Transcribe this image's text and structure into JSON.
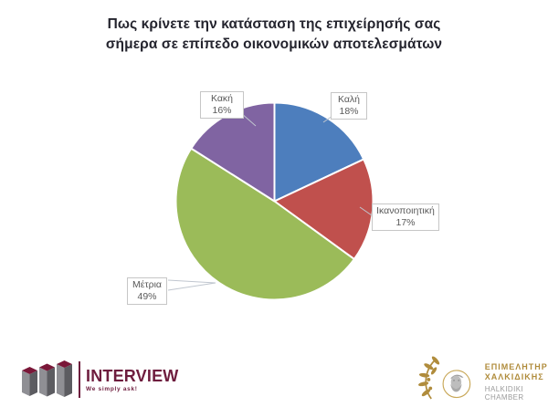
{
  "title": {
    "line1": "Πως κρίνετε την κατάσταση της επιχείρησής σας",
    "line2": "σήμερα σε επίπεδο οικονομικών αποτελεσμάτων"
  },
  "chart_data": {
    "type": "pie",
    "title": "Πως κρίνετε την κατάσταση της επιχείρησής σας σήμερα σε επίπεδο οικονομικών αποτελεσμάτων",
    "slices": [
      {
        "label": "Καλή",
        "value": 18,
        "pct_label": "18%",
        "color": "#4D7EBD"
      },
      {
        "label": "Ικανοποιητική",
        "value": 17,
        "pct_label": "17%",
        "color": "#C0504D"
      },
      {
        "label": "Μέτρια",
        "value": 49,
        "pct_label": "49%",
        "color": "#9BBB59"
      },
      {
        "label": "Κακή",
        "value": 16,
        "pct_label": "16%",
        "color": "#8064A2"
      }
    ],
    "start_angle_deg": 0,
    "direction": "clockwise",
    "legend_position": "none",
    "label_style": "callout boxes with category name and percent"
  },
  "footer": {
    "interview_logo": {
      "brand": "INTERVIEW",
      "tagline": "We simply ask!",
      "brand_color": "#6e1d3e"
    },
    "chamber_logo": {
      "line1": "ΕΠΙΜΕΛΗΤΗΡΙΟ",
      "line2": "ΧΑΛΚΙΔΙΚΗΣ",
      "line3": "HALKIDIKI CHAMBER",
      "gold_color": "#b08c3c",
      "gray_color": "#9b9b9b"
    }
  }
}
